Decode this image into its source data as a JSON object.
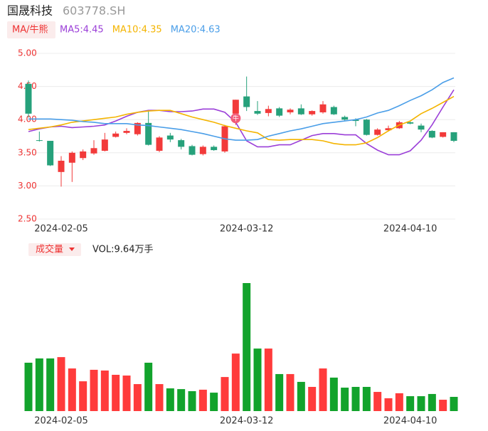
{
  "header": {
    "title": "国晟科技",
    "code": "603778.SH",
    "indicator": "MA/牛熊",
    "volume_tab": "成交量"
  },
  "chart_data": [
    {
      "type": "candlestick",
      "categories": [
        null,
        null,
        null,
        "2024-02-05",
        null,
        null,
        null,
        null,
        null,
        null,
        null,
        null,
        null,
        null,
        null,
        null,
        null,
        null,
        null,
        null,
        "2024-03-12",
        null,
        null,
        null,
        null,
        null,
        null,
        null,
        null,
        null,
        null,
        null,
        null,
        null,
        null,
        "2024-04-10",
        null,
        null,
        null,
        null
      ],
      "open": [
        4.54,
        3.69,
        3.68,
        3.21,
        3.35,
        3.42,
        3.49,
        3.53,
        3.74,
        3.8,
        3.78,
        3.95,
        3.53,
        3.76,
        3.69,
        3.6,
        3.48,
        3.59,
        3.52,
        4.09,
        4.35,
        4.13,
        4.1,
        4.17,
        4.11,
        4.17,
        4.08,
        4.11,
        4.19,
        4.04,
        4.0,
        4.0,
        3.77,
        3.84,
        3.87,
        3.96,
        3.91,
        3.83,
        3.74,
        3.81
      ],
      "close": [
        4.09,
        3.68,
        3.31,
        3.38,
        3.5,
        3.52,
        3.57,
        3.7,
        3.79,
        3.83,
        3.95,
        3.62,
        3.73,
        3.7,
        3.59,
        3.47,
        3.59,
        3.54,
        3.9,
        4.3,
        4.19,
        4.09,
        4.16,
        4.06,
        4.15,
        4.08,
        4.13,
        4.23,
        4.08,
        4.0,
        3.98,
        3.77,
        3.85,
        3.87,
        3.96,
        3.94,
        3.85,
        3.73,
        3.81,
        3.68
      ],
      "high": [
        4.59,
        3.82,
        3.68,
        3.45,
        3.52,
        3.55,
        3.69,
        3.8,
        3.82,
        3.87,
        3.96,
        4.14,
        3.75,
        3.8,
        3.71,
        3.62,
        3.61,
        3.61,
        3.92,
        4.3,
        4.65,
        4.28,
        4.21,
        4.19,
        4.17,
        4.23,
        4.14,
        4.28,
        4.21,
        4.06,
        4.02,
        4.01,
        3.87,
        3.91,
        3.98,
        3.97,
        3.94,
        3.84,
        3.81,
        3.81
      ],
      "low": [
        4.03,
        3.67,
        3.3,
        2.99,
        3.06,
        3.39,
        3.47,
        3.52,
        3.73,
        3.78,
        3.76,
        3.61,
        3.51,
        3.66,
        3.55,
        3.46,
        3.46,
        3.53,
        3.5,
        3.92,
        4.13,
        4.07,
        4.05,
        4.04,
        4.08,
        4.07,
        4.06,
        4.09,
        4.07,
        3.98,
        3.9,
        3.76,
        3.76,
        3.82,
        3.86,
        3.93,
        3.81,
        3.72,
        3.73,
        3.66
      ],
      "up_color": "#f23a3a",
      "down_color": "#26a17b",
      "series": [
        {
          "name": "MA5:4.45",
          "color": "#9b3fd8",
          "values": [
            3.82,
            3.86,
            3.89,
            3.9,
            3.88,
            3.89,
            3.9,
            3.92,
            3.98,
            4.05,
            4.11,
            4.14,
            4.14,
            4.12,
            4.12,
            4.13,
            4.16,
            4.16,
            4.11,
            3.96,
            3.68,
            3.59,
            3.59,
            3.62,
            3.62,
            3.69,
            3.76,
            3.79,
            3.79,
            3.77,
            3.77,
            3.64,
            3.54,
            3.47,
            3.47,
            3.53,
            3.69,
            3.92,
            4.19,
            4.45
          ]
        },
        {
          "name": "MA10:4.35",
          "color": "#f4b400",
          "values": [
            3.85,
            3.87,
            3.89,
            3.92,
            3.96,
            3.98,
            4.0,
            4.02,
            4.04,
            4.08,
            4.11,
            4.13,
            4.14,
            4.14,
            4.09,
            4.04,
            4.0,
            3.96,
            3.91,
            3.87,
            3.83,
            3.8,
            3.7,
            3.69,
            3.7,
            3.7,
            3.7,
            3.68,
            3.64,
            3.62,
            3.62,
            3.65,
            3.73,
            3.83,
            3.92,
            3.98,
            4.09,
            4.17,
            4.26,
            4.35
          ]
        },
        {
          "name": "MA20:4.63",
          "color": "#4a9ee8",
          "values": [
            4.01,
            4.01,
            4.01,
            4.0,
            3.99,
            3.97,
            3.96,
            3.94,
            3.94,
            3.94,
            3.92,
            3.91,
            3.89,
            3.87,
            3.85,
            3.82,
            3.79,
            3.75,
            3.71,
            3.69,
            3.69,
            3.7,
            3.75,
            3.79,
            3.83,
            3.86,
            3.9,
            3.94,
            3.96,
            3.98,
            4.0,
            4.04,
            4.1,
            4.14,
            4.21,
            4.29,
            4.36,
            4.45,
            4.56,
            4.63
          ]
        }
      ],
      "ylim": [
        2.5,
        5.0
      ],
      "yticks": [
        {
          "value": 2.5,
          "label": "2.50"
        },
        {
          "value": 3.0,
          "label": "3.00"
        },
        {
          "value": 3.5,
          "label": "3.50"
        },
        {
          "value": 4.0,
          "label": "4.00"
        },
        {
          "value": 4.5,
          "label": "4.50"
        },
        {
          "value": 5.0,
          "label": "5.00"
        }
      ],
      "grid": true,
      "annotation": {
        "label": "牛",
        "index": 19
      }
    },
    {
      "type": "bar",
      "label": "VOL:9.64万手",
      "categories": [
        null,
        null,
        null,
        "2024-02-05",
        null,
        null,
        null,
        null,
        null,
        null,
        null,
        null,
        null,
        null,
        null,
        null,
        null,
        null,
        null,
        null,
        "2024-03-12",
        null,
        null,
        null,
        null,
        null,
        null,
        null,
        null,
        null,
        null,
        null,
        null,
        null,
        null,
        "2024-04-10",
        null,
        null,
        null,
        null
      ],
      "values": [
        32.8,
        35.7,
        35.7,
        36.6,
        28.9,
        20.2,
        28.0,
        27.5,
        24.6,
        24.1,
        18.3,
        32.8,
        18.3,
        15.4,
        14.9,
        13.5,
        14.5,
        12.5,
        23.1,
        39.0,
        86.8,
        42.4,
        42.4,
        25.1,
        25.1,
        19.8,
        16.4,
        28.9,
        22.7,
        15.9,
        16.4,
        16.4,
        13.0,
        8.7,
        12.1,
        10.1,
        10.1,
        11.6,
        7.7,
        9.64
      ],
      "up_color": "#ff3b3b",
      "down_color": "#12a32c"
    }
  ]
}
